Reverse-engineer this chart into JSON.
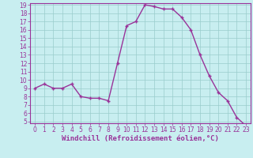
{
  "x": [
    0,
    1,
    2,
    3,
    4,
    5,
    6,
    7,
    8,
    9,
    10,
    11,
    12,
    13,
    14,
    15,
    16,
    17,
    18,
    19,
    20,
    21,
    22,
    23
  ],
  "y": [
    9.0,
    9.5,
    9.0,
    9.0,
    9.5,
    8.0,
    7.8,
    7.8,
    7.5,
    12.0,
    16.5,
    17.0,
    19.0,
    18.8,
    18.5,
    18.5,
    17.5,
    16.0,
    13.0,
    10.5,
    8.5,
    7.5,
    5.5,
    4.5
  ],
  "line_color": "#993399",
  "marker": "+",
  "marker_size": 3,
  "linewidth": 1.0,
  "bg_color": "#c8eef0",
  "grid_color": "#99cccc",
  "xlabel": "Windchill (Refroidissement éolien,°C)",
  "ylim_min": 5,
  "ylim_max": 19,
  "xlim_min": -0.5,
  "xlim_max": 23.5,
  "yticks": [
    5,
    6,
    7,
    8,
    9,
    10,
    11,
    12,
    13,
    14,
    15,
    16,
    17,
    18,
    19
  ],
  "xticks": [
    0,
    1,
    2,
    3,
    4,
    5,
    6,
    7,
    8,
    9,
    10,
    11,
    12,
    13,
    14,
    15,
    16,
    17,
    18,
    19,
    20,
    21,
    22,
    23
  ],
  "tick_fontsize": 5.5,
  "xlabel_fontsize": 6.5,
  "tick_color": "#993399",
  "label_color": "#993399",
  "spine_color": "#993399"
}
